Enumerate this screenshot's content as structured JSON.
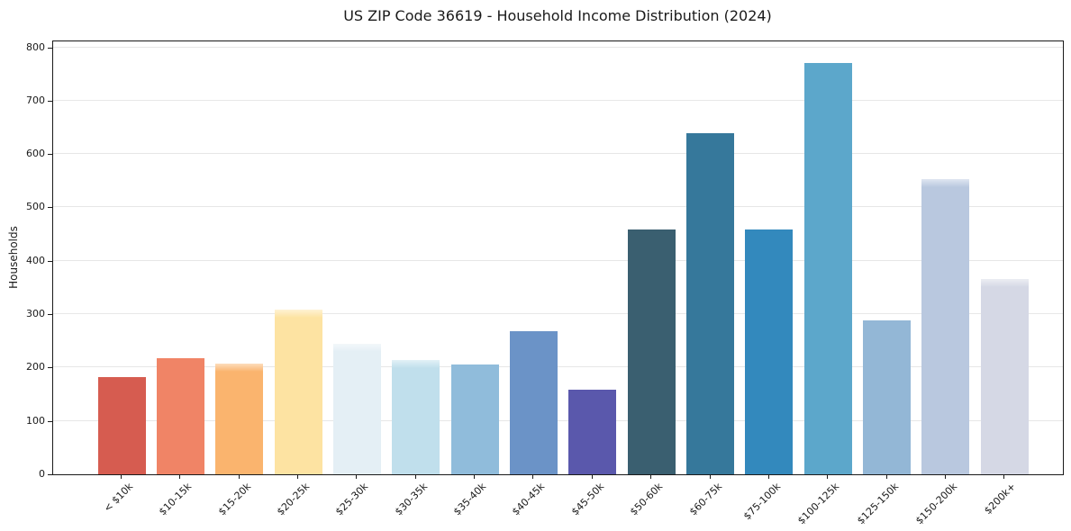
{
  "chart_data": {
    "type": "bar",
    "title": "US ZIP Code 36619 - Household Income Distribution (2024)",
    "xlabel": "",
    "ylabel": "Households",
    "categories": [
      "< $10k",
      "$10-15k",
      "$15-20k",
      "$20-25k",
      "$25-30k",
      "$30-35k",
      "$35-40k",
      "$40-45k",
      "$45-50k",
      "$50-60k",
      "$60-75k",
      "$75-100k",
      "$100-125k",
      "$125-150k",
      "$150-200k",
      "$200k+"
    ],
    "values": [
      182,
      217,
      207,
      308,
      245,
      215,
      205,
      269,
      158,
      458,
      639,
      458,
      771,
      289,
      553,
      366
    ],
    "bar_colors": [
      "#d65c50",
      "#f08466",
      "#fab46e",
      "#fde3a2",
      "#e4eff5",
      "#c0dfec",
      "#90bcdb",
      "#6b93c7",
      "#5a58ac",
      "#3a5f70",
      "#36789b",
      "#3389bd",
      "#5ca7cb",
      "#93b7d6",
      "#b9c8df",
      "#d5d8e5"
    ],
    "ylim": [
      0,
      811
    ],
    "yticks": [
      0,
      100,
      200,
      300,
      400,
      500,
      600,
      700,
      800
    ],
    "grid": "horizontal",
    "legend": "none",
    "x_tick_rotation": 45,
    "axis_color": "#1a1a1a",
    "grid_color": "#e7e7e7",
    "background_color": "#ffffff"
  }
}
